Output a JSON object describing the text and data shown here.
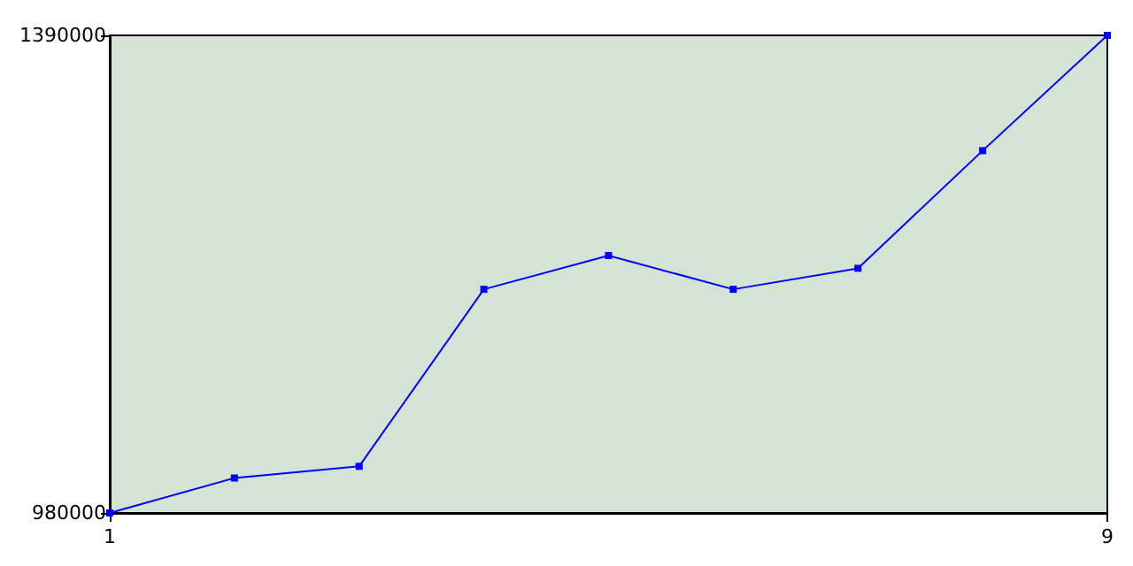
{
  "chart_data": {
    "type": "line",
    "x": [
      1,
      2,
      3,
      4,
      5,
      6,
      7,
      8,
      9
    ],
    "series": [
      {
        "color": "#0000ff",
        "values": [
          980000,
          1010000,
          1020000,
          1172000,
          1201000,
          1172000,
          1190000,
          1291000,
          1390000
        ]
      }
    ],
    "xlim": [
      1,
      9
    ],
    "xticks": [
      1,
      9
    ],
    "ylim": [
      980000,
      1390000
    ],
    "yticks": [
      980000,
      1390000
    ],
    "grid": false,
    "marker": "square",
    "line_style": "solid"
  }
}
